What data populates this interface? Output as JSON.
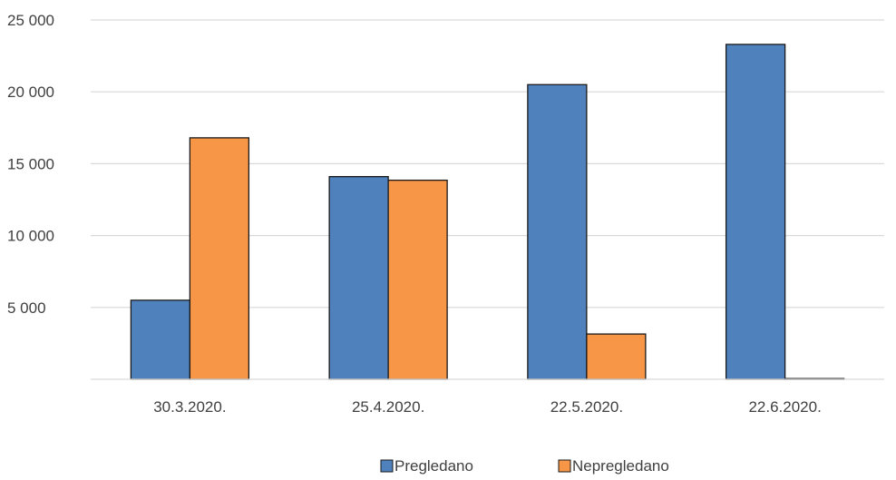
{
  "chart_data": {
    "type": "bar",
    "categories": [
      "30.3.2020.",
      "25.4.2020.",
      "22.5.2020.",
      "22.6.2020."
    ],
    "series": [
      {
        "name": "Pregledano",
        "values": [
          5500,
          14100,
          20500,
          23300
        ],
        "color": "#4f81bd"
      },
      {
        "name": "Nepregledano",
        "values": [
          16800,
          13850,
          3150,
          50
        ],
        "color": "#f79646"
      }
    ],
    "title": "",
    "xlabel": "",
    "ylabel": "",
    "ylim": [
      0,
      25000
    ],
    "yticks": [
      5000,
      10000,
      15000,
      20000,
      25000
    ],
    "ytick_labels": [
      "5 000",
      "10 000",
      "15 000",
      "20 000",
      "25 000"
    ],
    "grid": true,
    "legend": "bottom"
  }
}
